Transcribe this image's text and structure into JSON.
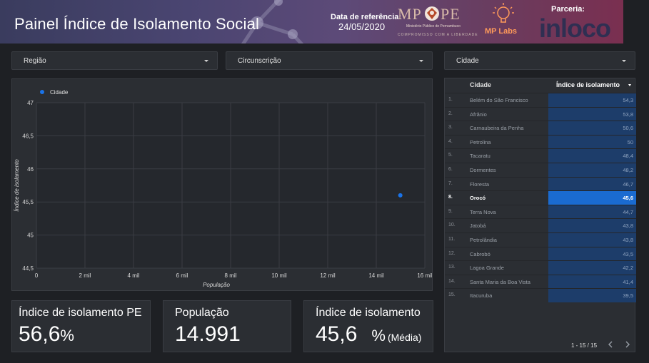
{
  "header": {
    "title": "Painel Índice de Isolamento Social",
    "ref_label": "Data de referência:",
    "ref_date": "24/05/2020",
    "logo_mppe": {
      "left": "MP",
      "right": "PE",
      "sub": "Ministério Público de Pernambuco",
      "sub2": "COMPROMISSO COM A LIBERDADE"
    },
    "logo_mplabs": "MP Labs",
    "partner_label": "Parceria:",
    "partner_logo": "inloco"
  },
  "filters": {
    "region": "Região",
    "circumscription": "Circunscrição",
    "city": "Cidade"
  },
  "chart_data": {
    "type": "scatter",
    "legend": [
      "Cidade"
    ],
    "legend_position": "top-left",
    "xlabel": "População",
    "ylabel": "Índice de isolamento",
    "xlim": [
      0,
      16000
    ],
    "ylim": [
      44.5,
      47
    ],
    "x_ticks": [
      "0",
      "2 mil",
      "4 mil",
      "6 mil",
      "8 mil",
      "10 mil",
      "12 mil",
      "14 mil",
      "16 mil"
    ],
    "y_ticks": [
      "44,5",
      "45",
      "45,5",
      "46",
      "46,5",
      "47"
    ],
    "grid": true,
    "series": [
      {
        "name": "Cidade",
        "points": [
          {
            "x": 14991,
            "y": 45.6
          }
        ]
      }
    ],
    "color": "#1a73e8"
  },
  "table": {
    "col_city": "Cidade",
    "col_index": "Índice de isolamento",
    "rows": [
      {
        "n": "1.",
        "city": "Belém do São Francisco",
        "value": "54,3"
      },
      {
        "n": "2.",
        "city": "Afrânio",
        "value": "53,8"
      },
      {
        "n": "3.",
        "city": "Carnaubeira da Penha",
        "value": "50,6"
      },
      {
        "n": "4.",
        "city": "Petrolina",
        "value": "50"
      },
      {
        "n": "5.",
        "city": "Tacaratu",
        "value": "48,4"
      },
      {
        "n": "6.",
        "city": "Dormentes",
        "value": "48,2"
      },
      {
        "n": "7.",
        "city": "Floresta",
        "value": "46,7"
      },
      {
        "n": "8.",
        "city": "Orocó",
        "value": "45,6",
        "selected": true
      },
      {
        "n": "9.",
        "city": "Terra Nova",
        "value": "44,7"
      },
      {
        "n": "10.",
        "city": "Jatobá",
        "value": "43,8"
      },
      {
        "n": "11.",
        "city": "Petrolândia",
        "value": "43,8"
      },
      {
        "n": "12.",
        "city": "Cabrobó",
        "value": "43,5"
      },
      {
        "n": "13.",
        "city": "Lagoa Grande",
        "value": "42,2"
      },
      {
        "n": "14.",
        "city": "Santa Maria da Boa Vista",
        "value": "41,4"
      },
      {
        "n": "15.",
        "city": "Itacuruba",
        "value": "39,5"
      }
    ],
    "pagination": "1 - 15 / 15"
  },
  "scorecards": {
    "pe": {
      "label": "Índice de isolamento PE",
      "value": "56,6",
      "unit": "%"
    },
    "population": {
      "label": "População",
      "value": "14.991"
    },
    "index": {
      "label": "Índice de isolamento",
      "value": "45,6",
      "unit": "%",
      "suffix": "(Média)"
    }
  }
}
